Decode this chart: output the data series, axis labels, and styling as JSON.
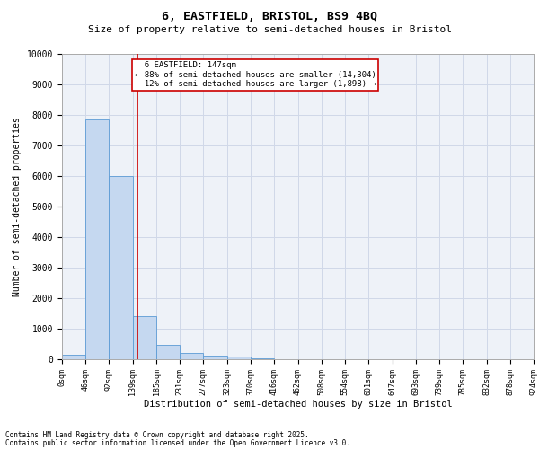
{
  "title_line1": "6, EASTFIELD, BRISTOL, BS9 4BQ",
  "title_line2": "Size of property relative to semi-detached houses in Bristol",
  "xlabel": "Distribution of semi-detached houses by size in Bristol",
  "ylabel": "Number of semi-detached properties",
  "property_label": "6 EASTFIELD: 147sqm",
  "pct_smaller": "88% of semi-detached houses are smaller (14,304)",
  "pct_larger": "12% of semi-detached houses are larger (1,898)",
  "property_value": 147,
  "bar_edges": [
    0,
    46,
    92,
    139,
    185,
    231,
    277,
    323,
    370,
    416,
    462,
    508,
    554,
    601,
    647,
    693,
    739,
    785,
    832,
    878,
    924
  ],
  "bar_heights": [
    150,
    7850,
    6000,
    1400,
    480,
    220,
    130,
    80,
    40,
    0,
    0,
    0,
    0,
    0,
    0,
    0,
    0,
    0,
    0,
    0
  ],
  "bar_color": "#c5d8f0",
  "bar_edge_color": "#5b9bd5",
  "line_color": "#cc0000",
  "grid_color": "#d0d8e8",
  "background_color": "#eef2f8",
  "ylim": [
    0,
    10000
  ],
  "yticks": [
    0,
    1000,
    2000,
    3000,
    4000,
    5000,
    6000,
    7000,
    8000,
    9000,
    10000
  ],
  "tick_labels": [
    "0sqm",
    "46sqm",
    "92sqm",
    "139sqm",
    "185sqm",
    "231sqm",
    "277sqm",
    "323sqm",
    "370sqm",
    "416sqm",
    "462sqm",
    "508sqm",
    "554sqm",
    "601sqm",
    "647sqm",
    "693sqm",
    "739sqm",
    "785sqm",
    "832sqm",
    "878sqm",
    "924sqm"
  ],
  "footer_line1": "Contains HM Land Registry data © Crown copyright and database right 2025.",
  "footer_line2": "Contains public sector information licensed under the Open Government Licence v3.0."
}
